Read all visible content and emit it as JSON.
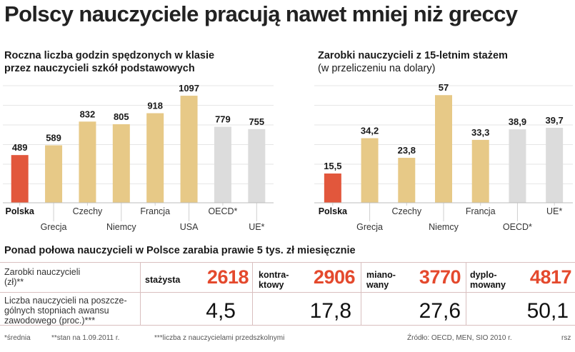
{
  "header": {
    "title": "Polscy nauczyciele pracują nawet mniej niż greccy"
  },
  "colors": {
    "highlight": "#e2573c",
    "bar": "#e7c987",
    "reference": "#dcdcdc",
    "grid": "#e6e6e6",
    "accent_text": "#e4492d"
  },
  "chart_data": [
    {
      "type": "bar",
      "title": "Roczna liczba godzin spędzonych w klasie",
      "title_line2": "przez nauczycieli szkół podstawowych",
      "categories": [
        "Polska",
        "Grecja",
        "Czechy",
        "Niemcy",
        "Francja",
        "USA",
        "OECD*",
        "UE*"
      ],
      "values": [
        489,
        589,
        832,
        805,
        918,
        1097,
        779,
        755
      ],
      "value_labels": [
        "489",
        "589",
        "832",
        "805",
        "918",
        "1097",
        "779",
        "755"
      ],
      "ylim": [
        0,
        1200
      ],
      "xlabel": "",
      "ylabel": ""
    },
    {
      "type": "bar",
      "title": "Zarobki nauczycieli z 15-letnim stażem",
      "subtitle": "(w przeliczeniu na dolary)",
      "categories": [
        "Polska",
        "Grecja",
        "Czechy",
        "Niemcy",
        "Francja",
        "OECD*",
        "UE*"
      ],
      "values": [
        15.5,
        34.2,
        23.8,
        57,
        33.3,
        38.9,
        39.7
      ],
      "value_labels": [
        "15,5",
        "34,2",
        "23,8",
        "57",
        "33,3",
        "38,9",
        "39,7"
      ],
      "ylim": [
        0,
        62
      ],
      "xlabel": "",
      "ylabel": ""
    }
  ],
  "table": {
    "title": "Ponad połowa nauczycieli w Polsce zarabia prawie 5 tys. zł miesięcznie",
    "row1_label_1": "Zarobki nauczycieli",
    "row1_label_2": "(zł)**",
    "row2_label_1": "Liczba nauczycieli na poszcze-",
    "row2_label_2": "gólnych stopniach awansu",
    "row2_label_3": "zawodowego (proc.)***",
    "grades": [
      {
        "label_1": "stażysta",
        "label_2": "",
        "salary": "2618",
        "share": "4,5"
      },
      {
        "label_1": "kontra-",
        "label_2": "ktowy",
        "salary": "2906",
        "share": "17,8"
      },
      {
        "label_1": "miano-",
        "label_2": "wany",
        "salary": "3770",
        "share": "27,6"
      },
      {
        "label_1": "dyplo-",
        "label_2": "mowany",
        "salary": "4817",
        "share": "50,1"
      }
    ]
  },
  "footnotes": {
    "note1": "*średnia",
    "note2": "**stan na 1.09.2011 r.",
    "note3": "***liczba z nauczycielami przedszkolnymi",
    "source": "Źródło: OECD, MEN, SIO 2010 r.",
    "credit": "rsz"
  }
}
